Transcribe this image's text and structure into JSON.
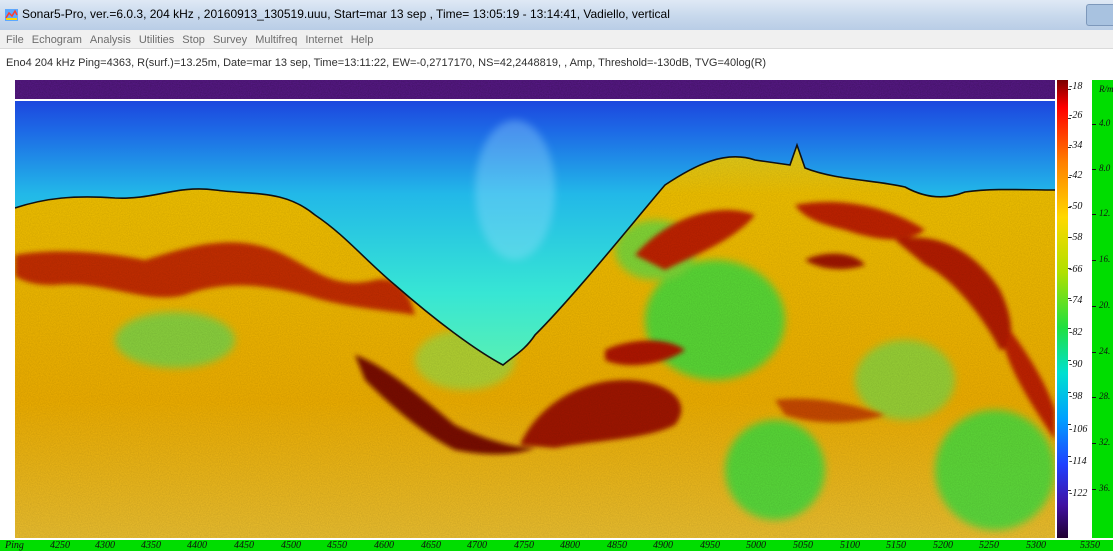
{
  "window": {
    "title": "Sonar5-Pro,  ver.=6.0.3,  204 kHz ,  20160913_130519.uuu,  Start=mar 13 sep ,  Time= 13:05:19 - 13:14:41,  Vadiello,  vertical",
    "app_icon": "sonar-app-icon"
  },
  "menu": {
    "items": [
      "File",
      "Echogram",
      "Analysis",
      "Utilities",
      "Stop",
      "Survey",
      "Multifreq",
      "Internet",
      "Help"
    ]
  },
  "info": {
    "text": "Eno4  204 kHz  Ping=4363,  R(surf.)=13.25m,  Date=mar 13 sep,  Time=13:11:22,  EW=-0,2717170,  NS=42,2448819,  ,  Amp,  Threshold=-130dB,  TVG=40log(R)"
  },
  "color_scale": {
    "labels": [
      "-18",
      "-26",
      "-34",
      "-42",
      "-50",
      "-58",
      "-66",
      "-74",
      "-82",
      "-90",
      "-98",
      "-106",
      "-114",
      "-122"
    ]
  },
  "range_axis": {
    "title": "R/m",
    "labels": [
      "4.0",
      "8.0",
      "12.",
      "16.",
      "20.",
      "24.",
      "28.",
      "32.",
      "36."
    ]
  },
  "ping_axis": {
    "title": "Ping",
    "labels": [
      "4250",
      "4300",
      "4350",
      "4400",
      "4450",
      "4500",
      "4550",
      "4600",
      "4650",
      "4700",
      "4750",
      "4800",
      "4850",
      "4900",
      "4950",
      "5000",
      "5050",
      "5100",
      "5150",
      "5200",
      "5250",
      "5300",
      "5350"
    ]
  },
  "colors": {
    "water_top": "#1c2fd8",
    "water_bottom": "#37e6d4",
    "sediment": "#f2c200",
    "strong_echo": "#b01800",
    "axis_green": "#00dd00"
  }
}
